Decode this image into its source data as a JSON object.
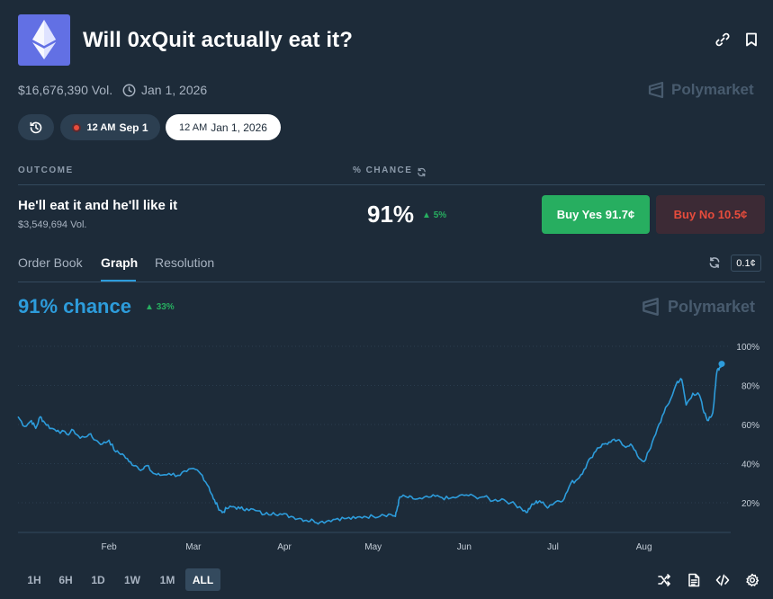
{
  "header": {
    "title": "Will 0xQuit actually eat it?",
    "volume": "$16,676,390 Vol.",
    "end_date": "Jan 1, 2026",
    "brand": "Polymarket"
  },
  "date_chips": [
    {
      "time": "12 AM",
      "date": "Sep 1"
    },
    {
      "time": "12 AM",
      "date": "Jan 1, 2026"
    }
  ],
  "table": {
    "col_outcome": "OUTCOME",
    "col_chance": "% CHANCE"
  },
  "outcome": {
    "name": "He'll eat it and he'll like it",
    "volume": "$3,549,694 Vol.",
    "chance": "91%",
    "delta": "5%",
    "buy_yes": "Buy Yes 91.7¢",
    "buy_no": "Buy No 10.5¢"
  },
  "tabs": [
    "Order Book",
    "Graph",
    "Resolution"
  ],
  "tick_size": "0.1¢",
  "graph": {
    "chance_label": "91% chance",
    "delta": "33%",
    "brand": "Polymarket"
  },
  "ranges": [
    "1H",
    "6H",
    "1D",
    "1W",
    "1M",
    "ALL"
  ],
  "colors": {
    "background": "#1d2b39",
    "accent": "#2d9cdb",
    "yes": "#27ae60",
    "no": "#e74c3c"
  },
  "chart_data": {
    "type": "line",
    "series": [
      {
        "values": [
          [
            0,
            64
          ],
          [
            3,
            59
          ],
          [
            6,
            62
          ],
          [
            8,
            58
          ],
          [
            10,
            64
          ],
          [
            12,
            61
          ],
          [
            15,
            58
          ],
          [
            18,
            57
          ],
          [
            22,
            55
          ],
          [
            25,
            57
          ],
          [
            28,
            53
          ],
          [
            32,
            55
          ],
          [
            35,
            52
          ],
          [
            38,
            50
          ],
          [
            41,
            52
          ],
          [
            44,
            46
          ],
          [
            47,
            45
          ],
          [
            50,
            41
          ],
          [
            53,
            39
          ],
          [
            56,
            37
          ],
          [
            58,
            39
          ],
          [
            61,
            35
          ],
          [
            64,
            34
          ],
          [
            68,
            35
          ],
          [
            72,
            34
          ],
          [
            76,
            36
          ],
          [
            80,
            37
          ],
          [
            83,
            34
          ],
          [
            86,
            28
          ],
          [
            88,
            22
          ],
          [
            90,
            18
          ],
          [
            92,
            15
          ],
          [
            94,
            17
          ],
          [
            97,
            18
          ],
          [
            100,
            17
          ],
          [
            103,
            17
          ],
          [
            107,
            16
          ],
          [
            111,
            14
          ],
          [
            115,
            15
          ],
          [
            119,
            14
          ],
          [
            123,
            13
          ],
          [
            127,
            12
          ],
          [
            130,
            11
          ],
          [
            133,
            11
          ],
          [
            136,
            10
          ],
          [
            140,
            11
          ],
          [
            144,
            12
          ],
          [
            148,
            12
          ],
          [
            152,
            12
          ],
          [
            156,
            13
          ],
          [
            160,
            13
          ],
          [
            164,
            14
          ],
          [
            168,
            14
          ],
          [
            170,
            13
          ],
          [
            171,
            18
          ],
          [
            172,
            23
          ],
          [
            175,
            23
          ],
          [
            178,
            22
          ],
          [
            182,
            22
          ],
          [
            186,
            23
          ],
          [
            190,
            23
          ],
          [
            194,
            22
          ],
          [
            198,
            23
          ],
          [
            202,
            24
          ],
          [
            206,
            23
          ],
          [
            210,
            23
          ],
          [
            214,
            21
          ],
          [
            218,
            22
          ],
          [
            222,
            20
          ],
          [
            226,
            18
          ],
          [
            229,
            15
          ],
          [
            231,
            18
          ],
          [
            233,
            20
          ],
          [
            235,
            21
          ],
          [
            238,
            18
          ],
          [
            240,
            19
          ],
          [
            243,
            21
          ],
          [
            246,
            22
          ],
          [
            249,
            30
          ],
          [
            252,
            32
          ],
          [
            255,
            37
          ],
          [
            258,
            43
          ],
          [
            261,
            48
          ],
          [
            264,
            50
          ],
          [
            267,
            51
          ],
          [
            270,
            52
          ],
          [
            273,
            49
          ],
          [
            276,
            50
          ],
          [
            279,
            44
          ],
          [
            282,
            41
          ],
          [
            285,
            48
          ],
          [
            288,
            58
          ],
          [
            291,
            66
          ],
          [
            294,
            73
          ],
          [
            297,
            82
          ],
          [
            299,
            83
          ],
          [
            301,
            70
          ],
          [
            304,
            76
          ],
          [
            307,
            75
          ],
          [
            309,
            66
          ],
          [
            311,
            62
          ],
          [
            313,
            66
          ],
          [
            314,
            78
          ],
          [
            315,
            88
          ],
          [
            316,
            89
          ],
          [
            317,
            91
          ]
        ]
      }
    ],
    "xlim": [
      0,
      317
    ],
    "ylim": [
      5,
      100
    ],
    "x_ticks": [
      {
        "label": "Feb",
        "x": 41
      },
      {
        "label": "Mar",
        "x": 79
      },
      {
        "label": "Apr",
        "x": 120
      },
      {
        "label": "May",
        "x": 160
      },
      {
        "label": "Jun",
        "x": 201
      },
      {
        "label": "Jul",
        "x": 241
      },
      {
        "label": "Aug",
        "x": 282
      }
    ],
    "y_ticks": [
      {
        "label": "100%",
        "y": 100
      },
      {
        "label": "80%",
        "y": 80
      },
      {
        "label": "60%",
        "y": 60
      },
      {
        "label": "40%",
        "y": 40
      },
      {
        "label": "20%",
        "y": 20
      }
    ],
    "grid": true,
    "color": "#2d9cdb"
  }
}
